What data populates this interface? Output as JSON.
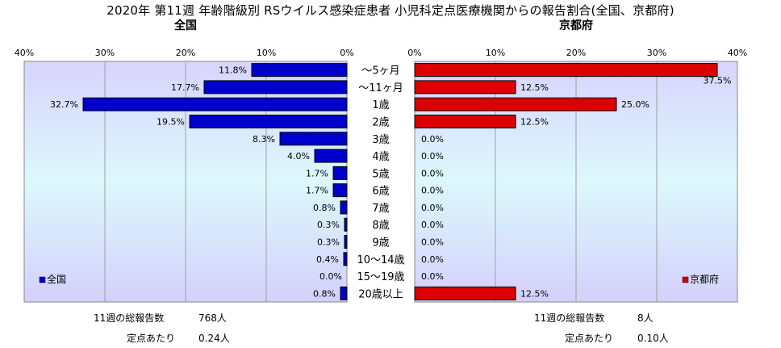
{
  "chart_data": {
    "type": "bar",
    "title": "2020年 第11週 年齢階級別 RSウイルス感染症患者 小児科定点医療機関からの報告割合(全国、京都府)",
    "categories": [
      "～5ヶ月",
      "～11ヶ月",
      "1歳",
      "2歳",
      "3歳",
      "4歳",
      "5歳",
      "6歳",
      "7歳",
      "8歳",
      "9歳",
      "10～14歳",
      "15～19歳",
      "20歳以上"
    ],
    "axis_ticks_left": [
      "40%",
      "30%",
      "20%",
      "10%",
      "0%"
    ],
    "axis_ticks_right": [
      "0%",
      "10%",
      "20%",
      "30%",
      "40%"
    ],
    "xlim": [
      0,
      40
    ],
    "grid": true,
    "legend_placement": "bottom-left / bottom-right",
    "series": [
      {
        "name": "全国",
        "panel_title": "全国",
        "color": "#0000cc",
        "values": [
          11.8,
          17.7,
          32.7,
          19.5,
          8.3,
          4.0,
          1.7,
          1.7,
          0.8,
          0.3,
          0.3,
          0.4,
          0.0,
          0.8
        ],
        "labels": [
          "11.8%",
          "17.7%",
          "32.7%",
          "19.5%",
          "8.3%",
          "4.0%",
          "1.7%",
          "1.7%",
          "0.8%",
          "0.3%",
          "0.3%",
          "0.4%",
          "0.0%",
          "0.8%"
        ]
      },
      {
        "name": "京都府",
        "panel_title": "京都府",
        "color": "#dd0000",
        "values": [
          37.5,
          12.5,
          25.0,
          12.5,
          0.0,
          0.0,
          0.0,
          0.0,
          0.0,
          0.0,
          0.0,
          0.0,
          0.0,
          12.5
        ],
        "labels": [
          "37.5%",
          "12.5%",
          "25.0%",
          "12.5%",
          "0.0%",
          "0.0%",
          "0.0%",
          "0.0%",
          "0.0%",
          "0.0%",
          "0.0%",
          "0.0%",
          "0.0%",
          "12.5%"
        ]
      }
    ]
  },
  "footer": {
    "left": {
      "total_label": "11週の総報告数",
      "total_value": "768人",
      "per_label": "定点あたり",
      "per_value": "0.24人"
    },
    "right": {
      "total_label": "11週の総報告数",
      "total_value": "8人",
      "per_label": "定点あたり",
      "per_value": "0.10人"
    }
  },
  "colors": {
    "plot_bg_top": "#d8d4fc",
    "plot_bg_mid": "#dcf8fc",
    "plot_bg_bottom": "#d4d0fc",
    "grid": "#a0a0a0"
  }
}
